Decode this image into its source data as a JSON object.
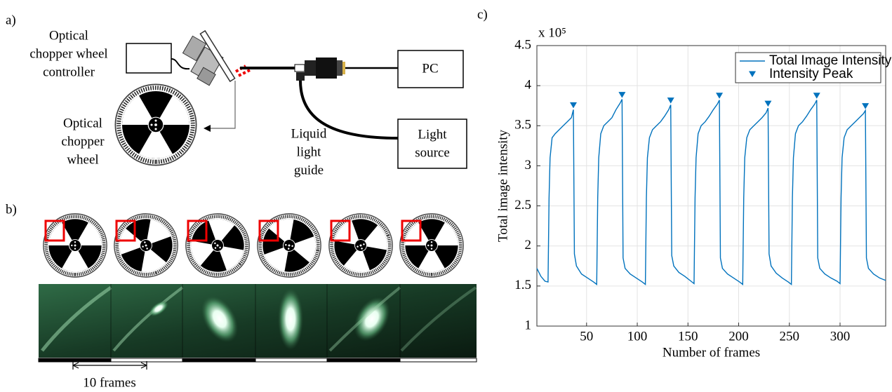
{
  "diagram": {
    "panel_a": {
      "label": "a)",
      "controller": [
        "Optical",
        "chopper wheel",
        "controller"
      ],
      "wheel": [
        "Optical",
        "chopper",
        "wheel"
      ],
      "guide": [
        "Liquid",
        "light",
        "guide"
      ],
      "pc": "PC",
      "light_source": [
        "Light",
        "source"
      ]
    },
    "panel_b": {
      "label": "b)",
      "scale": "10 frames"
    }
  },
  "chart_data": {
    "type": "line",
    "panel_label": "c)",
    "xlabel": "Number of frames",
    "ylabel": "Total image intensity",
    "y_multiplier": "x 10⁵",
    "xlim": [
      1,
      345
    ],
    "ylim": [
      1,
      4.5
    ],
    "xticks": [
      50,
      100,
      150,
      200,
      250,
      300
    ],
    "yticks": [
      1,
      1.5,
      2,
      2.5,
      3,
      3.5,
      4,
      4.5
    ],
    "grid": true,
    "legend": "upper right",
    "series": [
      {
        "name": "Total Image Intensity",
        "color": "#0072bd",
        "marker": "none",
        "x": [
          1,
          5,
          9,
          12,
          13,
          14,
          16,
          19,
          23,
          27,
          31,
          35,
          37,
          38,
          40,
          45,
          51,
          57,
          60,
          61,
          62,
          64,
          67,
          71,
          75,
          79,
          83,
          85,
          86,
          88,
          93,
          99,
          105,
          108,
          109,
          110,
          112,
          115,
          119,
          123,
          127,
          131,
          133,
          134,
          136,
          141,
          147,
          153,
          156,
          157,
          158,
          160,
          163,
          167,
          171,
          175,
          179,
          181,
          182,
          184,
          189,
          195,
          201,
          204,
          205,
          206,
          208,
          211,
          215,
          219,
          223,
          227,
          229,
          230,
          232,
          237,
          243,
          249,
          252,
          253,
          254,
          256,
          259,
          263,
          267,
          271,
          275,
          277,
          278,
          280,
          285,
          291,
          297,
          300,
          301,
          302,
          304,
          307,
          311,
          315,
          319,
          323,
          325,
          326,
          328,
          333,
          339,
          345
        ],
        "values": [
          1.72,
          1.62,
          1.56,
          1.55,
          2.6,
          3.1,
          3.35,
          3.4,
          3.45,
          3.5,
          3.55,
          3.6,
          3.7,
          1.9,
          1.75,
          1.65,
          1.6,
          1.55,
          1.52,
          2.6,
          3.1,
          3.4,
          3.5,
          3.55,
          3.6,
          3.7,
          3.78,
          3.83,
          1.85,
          1.72,
          1.65,
          1.6,
          1.55,
          1.52,
          2.6,
          3.1,
          3.35,
          3.45,
          3.5,
          3.55,
          3.62,
          3.7,
          3.76,
          1.88,
          1.75,
          1.67,
          1.62,
          1.56,
          1.53,
          2.6,
          3.1,
          3.4,
          3.5,
          3.55,
          3.62,
          3.7,
          3.77,
          3.82,
          1.85,
          1.72,
          1.65,
          1.6,
          1.55,
          1.52,
          2.6,
          3.1,
          3.35,
          3.45,
          3.5,
          3.55,
          3.6,
          3.66,
          3.72,
          1.9,
          1.75,
          1.66,
          1.6,
          1.55,
          1.52,
          2.6,
          3.1,
          3.4,
          3.5,
          3.55,
          3.62,
          3.7,
          3.77,
          3.82,
          1.85,
          1.72,
          1.65,
          1.6,
          1.56,
          1.53,
          2.6,
          3.1,
          3.35,
          3.45,
          3.5,
          3.55,
          3.6,
          3.65,
          3.69,
          1.85,
          1.72,
          1.65,
          1.6,
          1.57
        ]
      },
      {
        "name": "Intensity Peak",
        "color": "#0072bd",
        "marker": "triangle-down",
        "x": [
          37,
          85,
          133,
          181,
          229,
          277,
          325
        ],
        "values": [
          3.7,
          3.83,
          3.76,
          3.82,
          3.72,
          3.82,
          3.69
        ]
      }
    ]
  }
}
